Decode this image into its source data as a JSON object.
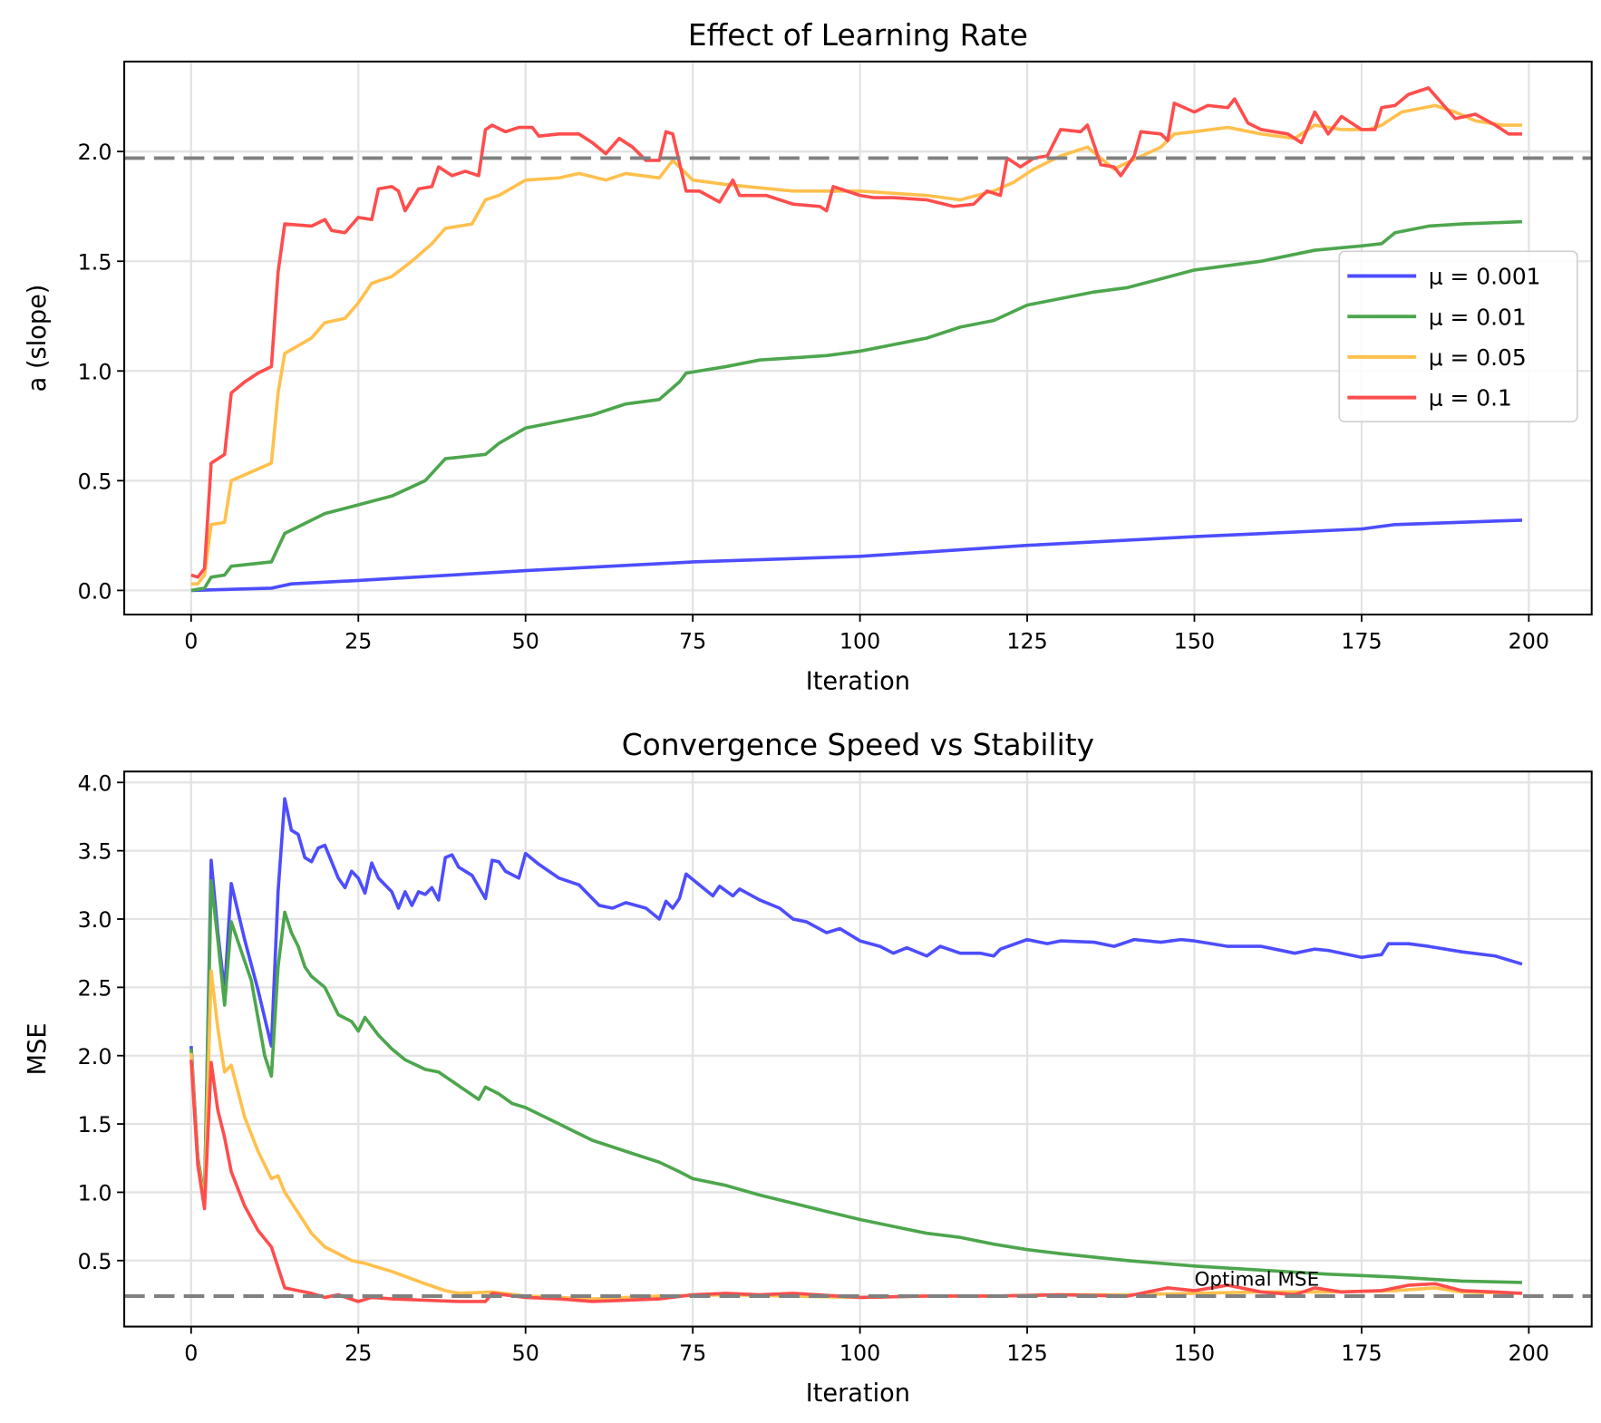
{
  "chart_data": [
    {
      "type": "line",
      "title": "Effect of Learning Rate",
      "xlabel": "Iteration",
      "ylabel": "a (slope)",
      "xlim": [
        -10,
        209.4
      ],
      "ylim": [
        -0.11,
        2.41
      ],
      "xticks": [
        0,
        25,
        50,
        75,
        100,
        125,
        150,
        175,
        200
      ],
      "xtick_labels": [
        "0",
        "25",
        "50",
        "75",
        "100",
        "125",
        "150",
        "175",
        "200"
      ],
      "yticks": [
        0,
        0.5,
        1.0,
        1.5,
        2.0
      ],
      "ytick_labels": [
        "0.0",
        "0.5",
        "1.0",
        "1.5",
        "2.0"
      ],
      "grid": true,
      "legend_position": "center-right",
      "reference_line": {
        "y": 1.97,
        "style": "dashed",
        "color": "#808080"
      },
      "series": [
        {
          "name": "μ = 0.001",
          "color": "#4d4dff",
          "x": [
            0,
            12,
            15,
            25,
            50,
            75,
            100,
            125,
            150,
            175,
            180,
            199
          ],
          "y": [
            0,
            0.01,
            0.03,
            0.045,
            0.09,
            0.13,
            0.155,
            0.205,
            0.245,
            0.28,
            0.3,
            0.32
          ]
        },
        {
          "name": "μ = 0.01",
          "color": "#4da64d",
          "x": [
            0,
            2,
            3,
            5,
            6,
            12,
            14,
            20,
            25,
            30,
            35,
            38,
            44,
            46,
            50,
            55,
            60,
            65,
            70,
            73,
            74,
            80,
            85,
            95,
            100,
            110,
            115,
            120,
            125,
            130,
            135,
            140,
            145,
            150,
            160,
            168,
            175,
            178,
            180,
            185,
            190,
            199
          ],
          "y": [
            0,
            0.01,
            0.06,
            0.07,
            0.11,
            0.13,
            0.26,
            0.35,
            0.39,
            0.43,
            0.5,
            0.6,
            0.62,
            0.67,
            0.74,
            0.77,
            0.8,
            0.85,
            0.87,
            0.95,
            0.99,
            1.02,
            1.05,
            1.07,
            1.09,
            1.15,
            1.2,
            1.23,
            1.3,
            1.33,
            1.36,
            1.38,
            1.42,
            1.46,
            1.5,
            1.55,
            1.57,
            1.58,
            1.63,
            1.66,
            1.67,
            1.68
          ]
        },
        {
          "name": "μ = 0.05",
          "color": "#ffc04d",
          "x": [
            0,
            1,
            2,
            3,
            5,
            6,
            12,
            13,
            14,
            18,
            20,
            23,
            25,
            27,
            30,
            33,
            36,
            38,
            42,
            44,
            46,
            50,
            55,
            58,
            62,
            65,
            70,
            72,
            75,
            80,
            90,
            100,
            110,
            115,
            120,
            123,
            126,
            130,
            134,
            138,
            140,
            145,
            147,
            150,
            155,
            160,
            165,
            168,
            172,
            176,
            178,
            181,
            186,
            189,
            192,
            196,
            199
          ],
          "y": [
            0.03,
            0.03,
            0.07,
            0.3,
            0.31,
            0.5,
            0.58,
            0.9,
            1.08,
            1.15,
            1.22,
            1.24,
            1.31,
            1.4,
            1.43,
            1.5,
            1.58,
            1.65,
            1.67,
            1.78,
            1.8,
            1.87,
            1.88,
            1.9,
            1.87,
            1.9,
            1.88,
            1.96,
            1.87,
            1.85,
            1.82,
            1.82,
            1.8,
            1.78,
            1.82,
            1.86,
            1.92,
            1.98,
            2.02,
            1.92,
            1.95,
            2.02,
            2.08,
            2.09,
            2.11,
            2.08,
            2.06,
            2.12,
            2.1,
            2.1,
            2.12,
            2.18,
            2.21,
            2.18,
            2.14,
            2.12,
            2.12
          ]
        },
        {
          "name": "μ = 0.1",
          "color": "#ff4d4d",
          "x": [
            0,
            1,
            2,
            3,
            5,
            6,
            8,
            10,
            12,
            13,
            14,
            18,
            20,
            21,
            23,
            25,
            27,
            28,
            30,
            31,
            32,
            34,
            36,
            37,
            39,
            41,
            43,
            44,
            45,
            47,
            49,
            51,
            52,
            55,
            58,
            60,
            62,
            64,
            66,
            68,
            70,
            71,
            72,
            74,
            76,
            79,
            81,
            82,
            86,
            90,
            94,
            95,
            96,
            100,
            102,
            105,
            110,
            114,
            117,
            119,
            121,
            122,
            124,
            126,
            128,
            130,
            133,
            134,
            136,
            138,
            139,
            141,
            142,
            145,
            146,
            147,
            150,
            152,
            155,
            156,
            158,
            160,
            164,
            166,
            168,
            170,
            172,
            175,
            177,
            178,
            180,
            182,
            185,
            189,
            192,
            195,
            197,
            199
          ],
          "y": [
            0.07,
            0.06,
            0.1,
            0.58,
            0.62,
            0.9,
            0.95,
            0.99,
            1.02,
            1.45,
            1.67,
            1.66,
            1.69,
            1.64,
            1.63,
            1.7,
            1.69,
            1.83,
            1.84,
            1.82,
            1.73,
            1.83,
            1.84,
            1.93,
            1.89,
            1.91,
            1.89,
            2.1,
            2.12,
            2.09,
            2.11,
            2.11,
            2.07,
            2.08,
            2.08,
            2.04,
            1.99,
            2.06,
            2.02,
            1.96,
            1.96,
            2.09,
            2.08,
            1.82,
            1.82,
            1.77,
            1.87,
            1.8,
            1.8,
            1.76,
            1.75,
            1.73,
            1.84,
            1.8,
            1.79,
            1.79,
            1.78,
            1.75,
            1.76,
            1.82,
            1.8,
            1.97,
            1.93,
            1.97,
            1.98,
            2.1,
            2.09,
            2.12,
            1.94,
            1.93,
            1.89,
            1.98,
            2.09,
            2.08,
            2.05,
            2.22,
            2.18,
            2.21,
            2.2,
            2.24,
            2.13,
            2.1,
            2.08,
            2.04,
            2.18,
            2.08,
            2.16,
            2.1,
            2.1,
            2.2,
            2.21,
            2.26,
            2.29,
            2.15,
            2.17,
            2.12,
            2.08,
            2.08
          ]
        }
      ]
    },
    {
      "type": "line",
      "title": "Convergence Speed vs Stability",
      "xlabel": "Iteration",
      "ylabel": "MSE",
      "xlim": [
        -10,
        209.4
      ],
      "ylim": [
        0.017,
        4.08
      ],
      "xticks": [
        0,
        25,
        50,
        75,
        100,
        125,
        150,
        175,
        200
      ],
      "xtick_labels": [
        "0",
        "25",
        "50",
        "75",
        "100",
        "125",
        "150",
        "175",
        "200"
      ],
      "yticks": [
        0.5,
        1.0,
        1.5,
        2.0,
        2.5,
        3.0,
        3.5,
        4.0
      ],
      "ytick_labels": [
        "0.5",
        "1.0",
        "1.5",
        "2.0",
        "2.5",
        "3.0",
        "3.5",
        "4.0"
      ],
      "grid": true,
      "reference_line": {
        "y": 0.24,
        "style": "dashed",
        "color": "#808080"
      },
      "annotations": [
        {
          "text": "Optimal MSE",
          "x": 150,
          "y": 0.3
        }
      ],
      "series": [
        {
          "name": "μ = 0.001",
          "color": "#4d4dff",
          "x": [
            0,
            1,
            2,
            3,
            4,
            5,
            6,
            8,
            10,
            12,
            13,
            14,
            15,
            16,
            17,
            18,
            19,
            20,
            22,
            23,
            24,
            25,
            26,
            27,
            28,
            30,
            31,
            32,
            33,
            34,
            35,
            36,
            37,
            38,
            39,
            40,
            42,
            44,
            45,
            46,
            47,
            49,
            50,
            52,
            55,
            58,
            61,
            63,
            65,
            68,
            70,
            71,
            72,
            73,
            74,
            76,
            78,
            79,
            81,
            82,
            85,
            88,
            90,
            92,
            95,
            97,
            100,
            103,
            105,
            107,
            110,
            112,
            115,
            118,
            120,
            121,
            125,
            128,
            130,
            135,
            138,
            141,
            145,
            148,
            150,
            155,
            160,
            165,
            168,
            170,
            175,
            178,
            179,
            182,
            185,
            190,
            195,
            199
          ],
          "y": [
            2.07,
            1.25,
            0.95,
            3.43,
            2.9,
            2.47,
            3.26,
            2.85,
            2.48,
            2.07,
            3.2,
            3.88,
            3.65,
            3.62,
            3.45,
            3.42,
            3.52,
            3.54,
            3.3,
            3.23,
            3.35,
            3.3,
            3.19,
            3.41,
            3.3,
            3.2,
            3.08,
            3.2,
            3.1,
            3.2,
            3.18,
            3.23,
            3.14,
            3.45,
            3.47,
            3.38,
            3.32,
            3.15,
            3.43,
            3.42,
            3.35,
            3.3,
            3.48,
            3.4,
            3.3,
            3.25,
            3.1,
            3.08,
            3.12,
            3.08,
            3.0,
            3.13,
            3.08,
            3.15,
            3.33,
            3.25,
            3.17,
            3.24,
            3.17,
            3.22,
            3.14,
            3.08,
            3.0,
            2.98,
            2.9,
            2.93,
            2.84,
            2.8,
            2.75,
            2.79,
            2.73,
            2.8,
            2.75,
            2.75,
            2.73,
            2.78,
            2.85,
            2.82,
            2.84,
            2.83,
            2.8,
            2.85,
            2.83,
            2.85,
            2.84,
            2.8,
            2.8,
            2.75,
            2.78,
            2.77,
            2.72,
            2.74,
            2.82,
            2.82,
            2.8,
            2.76,
            2.73,
            2.67
          ]
        },
        {
          "name": "μ = 0.01",
          "color": "#4da64d",
          "x": [
            0,
            1,
            2,
            3,
            4,
            5,
            6,
            9,
            11,
            12,
            13,
            14,
            15,
            16,
            17,
            18,
            20,
            22,
            24,
            25,
            26,
            28,
            30,
            32,
            35,
            37,
            40,
            43,
            44,
            46,
            48,
            50,
            55,
            60,
            65,
            70,
            73,
            75,
            80,
            85,
            90,
            95,
            100,
            105,
            110,
            115,
            120,
            125,
            130,
            140,
            150,
            160,
            170,
            180,
            190,
            199
          ],
          "y": [
            2.05,
            1.25,
            0.95,
            3.28,
            2.85,
            2.37,
            2.98,
            2.55,
            2.0,
            1.85,
            2.65,
            3.05,
            2.9,
            2.8,
            2.65,
            2.58,
            2.5,
            2.3,
            2.25,
            2.18,
            2.28,
            2.15,
            2.05,
            1.97,
            1.9,
            1.88,
            1.78,
            1.68,
            1.77,
            1.72,
            1.65,
            1.62,
            1.5,
            1.38,
            1.3,
            1.22,
            1.15,
            1.1,
            1.05,
            0.98,
            0.92,
            0.86,
            0.8,
            0.75,
            0.7,
            0.67,
            0.62,
            0.58,
            0.55,
            0.5,
            0.46,
            0.43,
            0.4,
            0.38,
            0.35,
            0.34
          ]
        },
        {
          "name": "μ = 0.05",
          "color": "#ffc04d",
          "x": [
            0,
            1,
            2,
            3,
            4,
            5,
            6,
            8,
            10,
            12,
            13,
            14,
            16,
            18,
            20,
            22,
            24,
            26,
            30,
            35,
            38,
            40,
            45,
            50,
            60,
            70,
            80,
            90,
            100,
            110,
            120,
            130,
            140,
            150,
            160,
            170,
            180,
            186,
            190,
            199
          ],
          "y": [
            2.02,
            1.22,
            0.92,
            2.62,
            2.2,
            1.88,
            1.93,
            1.55,
            1.3,
            1.1,
            1.12,
            1.0,
            0.85,
            0.7,
            0.6,
            0.55,
            0.5,
            0.48,
            0.42,
            0.33,
            0.28,
            0.26,
            0.27,
            0.24,
            0.22,
            0.24,
            0.25,
            0.24,
            0.23,
            0.24,
            0.24,
            0.25,
            0.25,
            0.26,
            0.27,
            0.27,
            0.28,
            0.3,
            0.27,
            0.26
          ]
        },
        {
          "name": "μ = 0.1",
          "color": "#ff4d4d",
          "x": [
            0,
            1,
            2,
            3,
            4,
            5,
            6,
            8,
            10,
            12,
            13,
            14,
            16,
            18,
            20,
            22,
            25,
            27,
            30,
            35,
            40,
            44,
            45,
            50,
            55,
            60,
            65,
            70,
            75,
            80,
            85,
            90,
            100,
            110,
            120,
            130,
            140,
            146,
            150,
            155,
            160,
            165,
            168,
            172,
            178,
            182,
            186,
            190,
            195,
            199
          ],
          "y": [
            1.97,
            1.2,
            0.88,
            1.95,
            1.6,
            1.4,
            1.15,
            0.9,
            0.72,
            0.6,
            0.45,
            0.3,
            0.28,
            0.26,
            0.23,
            0.25,
            0.2,
            0.23,
            0.22,
            0.21,
            0.2,
            0.2,
            0.26,
            0.23,
            0.22,
            0.2,
            0.21,
            0.22,
            0.25,
            0.26,
            0.25,
            0.26,
            0.23,
            0.24,
            0.24,
            0.25,
            0.24,
            0.3,
            0.28,
            0.32,
            0.27,
            0.25,
            0.3,
            0.27,
            0.28,
            0.32,
            0.33,
            0.28,
            0.27,
            0.26
          ]
        }
      ]
    }
  ]
}
